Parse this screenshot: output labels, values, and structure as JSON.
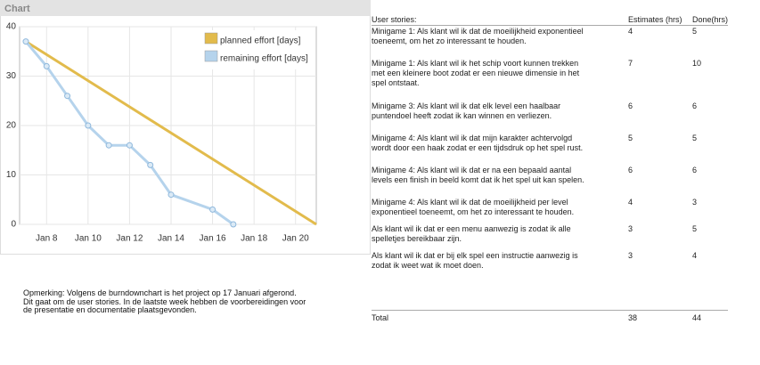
{
  "panel_title": "Chart",
  "chart_data": {
    "type": "line",
    "series": [
      {
        "name": "planned effort [days]",
        "color": "#e2bb4c",
        "marker": false,
        "x": [
          7,
          21
        ],
        "values": [
          37,
          0
        ]
      },
      {
        "name": "remaining effort [days]",
        "color": "#b5d3ec",
        "marker": true,
        "x": [
          7,
          8,
          9,
          10,
          11,
          12,
          13,
          14,
          16,
          17
        ],
        "values": [
          37,
          32,
          26,
          20,
          16,
          16,
          12,
          6,
          3,
          0
        ]
      }
    ],
    "xlim": [
      6.7,
      21
    ],
    "xticks": [
      {
        "value": 8,
        "label": "Jan 8"
      },
      {
        "value": 10,
        "label": "Jan 10"
      },
      {
        "value": 12,
        "label": "Jan 12"
      },
      {
        "value": 14,
        "label": "Jan 14"
      },
      {
        "value": 16,
        "label": "Jan 16"
      },
      {
        "value": 18,
        "label": "Jan 18"
      },
      {
        "value": 20,
        "label": "Jan 20"
      }
    ],
    "ylim": [
      0,
      40
    ],
    "yticks": [
      0,
      10,
      20,
      30,
      40
    ],
    "grid": true,
    "legend": "top-right"
  },
  "note": [
    "Opmerking: Volgens de burndownchart is het project op 17 Januari afgerond.",
    "Dit gaat om de user stories. In de laatste week hebben de voorbereidingen voor",
    "de presentatie en documentatie plaatsgevonden."
  ],
  "table": {
    "header": [
      "User stories:",
      "Estimates (hrs)",
      "Done(hrs)"
    ],
    "rows": [
      [
        "Minigame 1: Als klant wil ik dat de moeilijkheid exponentieel toeneemt, om het zo interessant te houden.",
        4,
        5
      ],
      [
        "Minigame 1: Als klant wil ik het schip voort kunnen trekken met een kleinere boot zodat er een nieuwe dimensie in het spel ontstaat.",
        7,
        10
      ],
      [
        "Minigame 3: Als klant wil ik dat elk level een haalbaar puntendoel heeft zodat ik kan winnen en verliezen.",
        6,
        6
      ],
      [
        "Minigame 4: Als klant wil ik dat mijn karakter achtervolgd wordt door een haak zodat er een tijdsdruk op het spel rust.",
        5,
        5
      ],
      [
        "Minigame 4: Als klant wil ik dat er na een bepaald aantal levels een finish in beeld komt dat ik het spel uit kan spelen.",
        6,
        6
      ],
      [
        "Minigame 4: Als klant wil ik dat de moeilijkheid per level exponentieel toeneemt, om het zo interessant te houden.",
        4,
        3
      ],
      [
        "Als klant wil ik dat er een menu aanwezig is zodat ik alle spelletjes bereikbaar zijn.",
        3,
        5
      ],
      [
        "Als klant wil ik dat er bij elk spel een instructie aanwezig is zodat ik weet wat ik moet doen.",
        3,
        4
      ]
    ],
    "total": [
      "Total",
      38,
      44
    ]
  }
}
